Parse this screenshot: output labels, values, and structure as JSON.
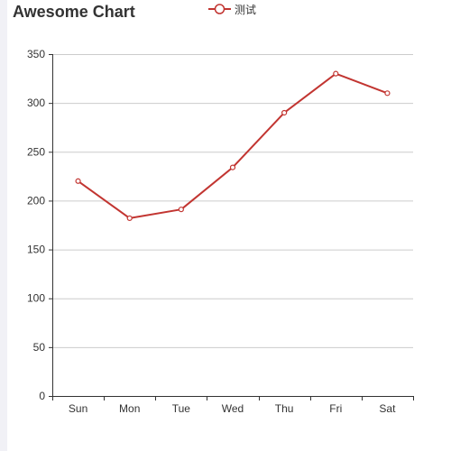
{
  "chart_data": {
    "type": "line",
    "title": "Awesome Chart",
    "xlabel": "",
    "ylabel": "",
    "categories": [
      "Sun",
      "Mon",
      "Tue",
      "Wed",
      "Thu",
      "Fri",
      "Sat"
    ],
    "series": [
      {
        "name": "测试",
        "values": [
          220,
          182,
          191,
          234,
          290,
          330,
          310
        ]
      }
    ],
    "ylim": [
      0,
      350
    ],
    "yticks": [
      0,
      50,
      100,
      150,
      200,
      250,
      300,
      350
    ],
    "grid": true,
    "legend_position": "top-center",
    "colors": {
      "series": "#c23531",
      "grid": "#cccccc",
      "axis": "#333333"
    }
  }
}
